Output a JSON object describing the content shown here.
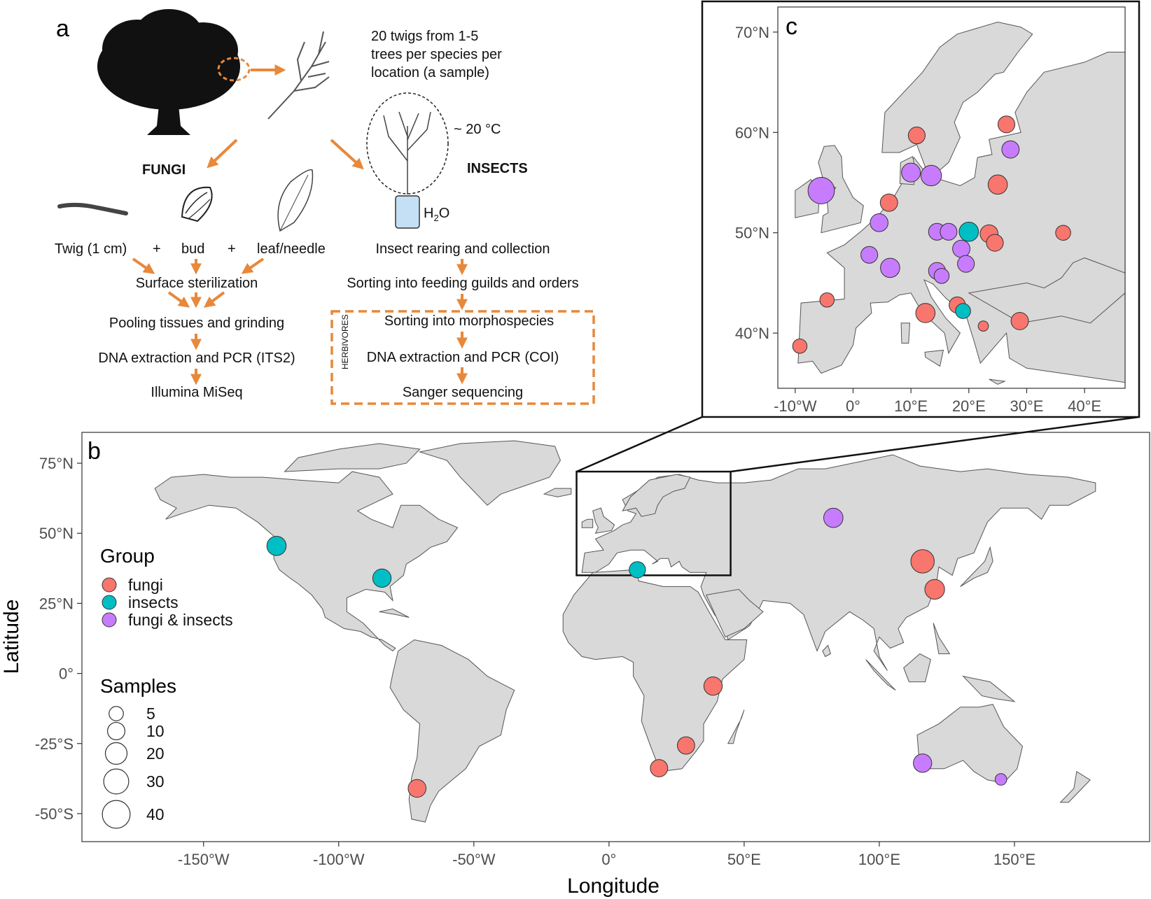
{
  "panel_a": {
    "label": "a",
    "twigs_note": [
      "20 twigs from 1-5",
      "trees per species per",
      "location (a sample)"
    ],
    "temp": "~ 20 °C",
    "fungi_heading": "FUNGI",
    "insects_heading": "INSECTS",
    "water_label": "H",
    "water_sub": "2",
    "water_tail": "O",
    "tissues": {
      "twig": "Twig (1 cm)",
      "plus1": "+",
      "bud": "bud",
      "plus2": "+",
      "leaf": "leaf/needle"
    },
    "fungi_steps": [
      "Surface sterilization",
      "Pooling tissues and grinding",
      "DNA extraction and PCR (ITS2)",
      "Illumina MiSeq"
    ],
    "insect_steps": [
      "Insect rearing and collection",
      "Sorting into feeding guilds and orders",
      "Sorting into morphospecies",
      "DNA extraction and PCR (COI)",
      "Sanger sequencing"
    ],
    "herbivores_label": "HERBIVORES"
  },
  "panel_b": {
    "label": "b",
    "xlabel": "Longitude",
    "ylabel": "Latitude",
    "x_ticks": [
      "-150°W",
      "-100°W",
      "-50°W",
      "0°",
      "50°E",
      "100°E",
      "150°E"
    ],
    "x_tick_values": [
      -150,
      -100,
      -50,
      0,
      50,
      100,
      150
    ],
    "y_ticks": [
      "75°N",
      "50°N",
      "25°N",
      "0°",
      "-25°S",
      "-50°S"
    ],
    "y_tick_values": [
      75,
      50,
      25,
      0,
      -25,
      -50
    ],
    "xlim": [
      -195,
      200
    ],
    "ylim": [
      -60,
      86
    ],
    "legend": {
      "group_title": "Group",
      "groups": [
        {
          "name": "fungi",
          "color": "#f8766d"
        },
        {
          "name": "insects",
          "color": "#00bfc4"
        },
        {
          "name": "fungi & insects",
          "color": "#c77cff"
        }
      ],
      "size_title": "Samples",
      "sizes": [
        "5",
        "10",
        "20",
        "30",
        "40"
      ],
      "size_values": [
        5,
        10,
        20,
        30,
        40
      ]
    },
    "points": [
      {
        "lon": -123,
        "lat": 45.5,
        "group": "insects",
        "samples": 14
      },
      {
        "lon": -84,
        "lat": 34,
        "group": "insects",
        "samples": 12
      },
      {
        "lon": 10.5,
        "lat": 37,
        "group": "insects",
        "samples": 8
      },
      {
        "lon": 83,
        "lat": 55.5,
        "group": "fungi & insects",
        "samples": 14
      },
      {
        "lon": 116,
        "lat": 40,
        "group": "fungi",
        "samples": 25
      },
      {
        "lon": 120.5,
        "lat": 30,
        "group": "fungi",
        "samples": 15
      },
      {
        "lon": 38.5,
        "lat": -4.5,
        "group": "fungi",
        "samples": 12
      },
      {
        "lon": 28.5,
        "lat": -25.7,
        "group": "fungi",
        "samples": 10
      },
      {
        "lon": 18.5,
        "lat": -33.8,
        "group": "fungi",
        "samples": 10
      },
      {
        "lon": -71,
        "lat": -41,
        "group": "fungi",
        "samples": 11
      },
      {
        "lon": 116,
        "lat": -32,
        "group": "fungi & insects",
        "samples": 12
      },
      {
        "lon": 145,
        "lat": -37.8,
        "group": "fungi & insects",
        "samples": 2
      }
    ],
    "inset_box": {
      "lon": [
        -12,
        45
      ],
      "lat": [
        35,
        72
      ]
    }
  },
  "panel_c": {
    "label": "c",
    "x_ticks": [
      "-10°W",
      "0°",
      "10°E",
      "20°E",
      "30°E",
      "40°E"
    ],
    "x_tick_values": [
      -10,
      0,
      10,
      20,
      30,
      40
    ],
    "y_ticks": [
      "70°N",
      "60°N",
      "50°N",
      "40°N"
    ],
    "y_tick_values": [
      70,
      60,
      50,
      40
    ],
    "xlim": [
      -13,
      47
    ],
    "ylim": [
      34.5,
      72.5
    ],
    "points": [
      {
        "lon": 26.5,
        "lat": 60.8,
        "group": "fungi",
        "samples": 9
      },
      {
        "lon": 11,
        "lat": 59.7,
        "group": "fungi",
        "samples": 9
      },
      {
        "lon": 27.2,
        "lat": 58.3,
        "group": "fungi & insects",
        "samples": 10
      },
      {
        "lon": -5.5,
        "lat": 54.2,
        "group": "fungi & insects",
        "samples": 35
      },
      {
        "lon": 10,
        "lat": 56,
        "group": "fungi & insects",
        "samples": 13
      },
      {
        "lon": 13.5,
        "lat": 55.7,
        "group": "fungi & insects",
        "samples": 17
      },
      {
        "lon": 25,
        "lat": 54.8,
        "group": "fungi",
        "samples": 14
      },
      {
        "lon": 6.2,
        "lat": 53,
        "group": "fungi",
        "samples": 10
      },
      {
        "lon": 4.5,
        "lat": 51,
        "group": "fungi & insects",
        "samples": 11
      },
      {
        "lon": 14.5,
        "lat": 50.1,
        "group": "fungi & insects",
        "samples": 9
      },
      {
        "lon": 16.5,
        "lat": 50.1,
        "group": "fungi & insects",
        "samples": 9
      },
      {
        "lon": 20,
        "lat": 50.1,
        "group": "insects",
        "samples": 14
      },
      {
        "lon": 23.5,
        "lat": 49.9,
        "group": "fungi",
        "samples": 11
      },
      {
        "lon": 24.5,
        "lat": 49,
        "group": "fungi",
        "samples": 9
      },
      {
        "lon": 36.3,
        "lat": 50,
        "group": "fungi",
        "samples": 6
      },
      {
        "lon": 2.8,
        "lat": 47.8,
        "group": "fungi & insects",
        "samples": 9
      },
      {
        "lon": 18.7,
        "lat": 48.4,
        "group": "fungi & insects",
        "samples": 10
      },
      {
        "lon": 6.4,
        "lat": 46.5,
        "group": "fungi & insects",
        "samples": 14
      },
      {
        "lon": 19.5,
        "lat": 46.9,
        "group": "fungi & insects",
        "samples": 9
      },
      {
        "lon": 14.5,
        "lat": 46.2,
        "group": "fungi & insects",
        "samples": 9
      },
      {
        "lon": 15.3,
        "lat": 45.7,
        "group": "fungi & insects",
        "samples": 6
      },
      {
        "lon": -4.5,
        "lat": 43.3,
        "group": "fungi",
        "samples": 5
      },
      {
        "lon": 12.5,
        "lat": 42,
        "group": "fungi",
        "samples": 14
      },
      {
        "lon": 18,
        "lat": 42.8,
        "group": "fungi",
        "samples": 8
      },
      {
        "lon": 19,
        "lat": 42.2,
        "group": "insects",
        "samples": 6
      },
      {
        "lon": 22.5,
        "lat": 40.7,
        "group": "fungi",
        "samples": 1
      },
      {
        "lon": 28.8,
        "lat": 41.2,
        "group": "fungi",
        "samples": 10
      },
      {
        "lon": -9.2,
        "lat": 38.7,
        "group": "fungi",
        "samples": 5
      }
    ]
  },
  "colors": {
    "fungi": "#f8766d",
    "insects": "#00bfc4",
    "fungi & insects": "#c77cff",
    "land": "#d9d9d9",
    "arrow": "#e8883a"
  }
}
